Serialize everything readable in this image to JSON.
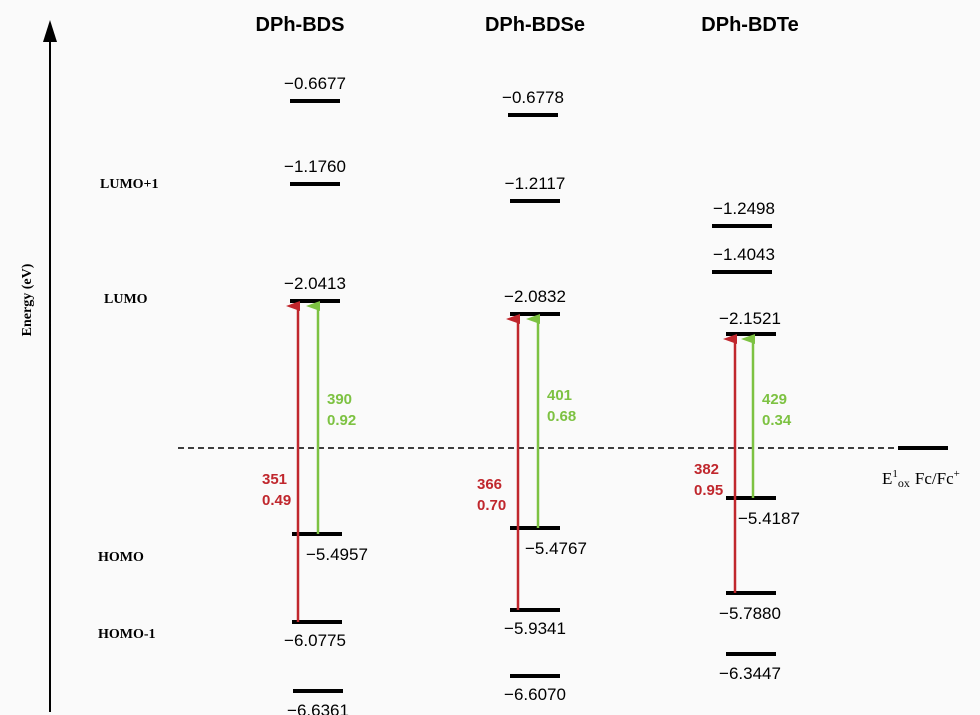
{
  "axis": {
    "label": "Energy (eV)"
  },
  "columns": [
    {
      "title": "DPh-BDS"
    },
    {
      "title": "DPh-BDSe"
    },
    {
      "title": "DPh-BDTe"
    }
  ],
  "row_labels": {
    "lumo_plus1": "LUMO+1",
    "lumo": "LUMO",
    "homo": "HOMO",
    "homo_minus1": "HOMO-1"
  },
  "levels": {
    "bds": [
      "−0.6677",
      "−1.1760",
      "−2.0413",
      "−5.4957",
      "−6.0775",
      "−6.6361"
    ],
    "bdse": [
      "−0.6778",
      "−1.2117",
      "−2.0832",
      "−5.4767",
      "−5.9341",
      "−6.6070"
    ],
    "bdte": [
      "−1.2498",
      "−1.4043",
      "−2.1521",
      "−5.4187",
      "−5.7880",
      "−6.3447"
    ]
  },
  "transitions": {
    "bds": {
      "red": {
        "wavelength": "351",
        "strength": "0.49"
      },
      "green": {
        "wavelength": "390",
        "strength": "0.92"
      }
    },
    "bdse": {
      "red": {
        "wavelength": "366",
        "strength": "0.70"
      },
      "green": {
        "wavelength": "401",
        "strength": "0.68"
      }
    },
    "bdte": {
      "red": {
        "wavelength": "382",
        "strength": "0.95"
      },
      "green": {
        "wavelength": "429",
        "strength": "0.34"
      }
    }
  },
  "reference": {
    "e": "E",
    "sup": "1",
    "sub": "ox",
    "couple": "Fc/Fc",
    "plus": "+"
  },
  "colors": {
    "red_arrow": "#c0272d",
    "green_arrow": "#7dc242"
  }
}
